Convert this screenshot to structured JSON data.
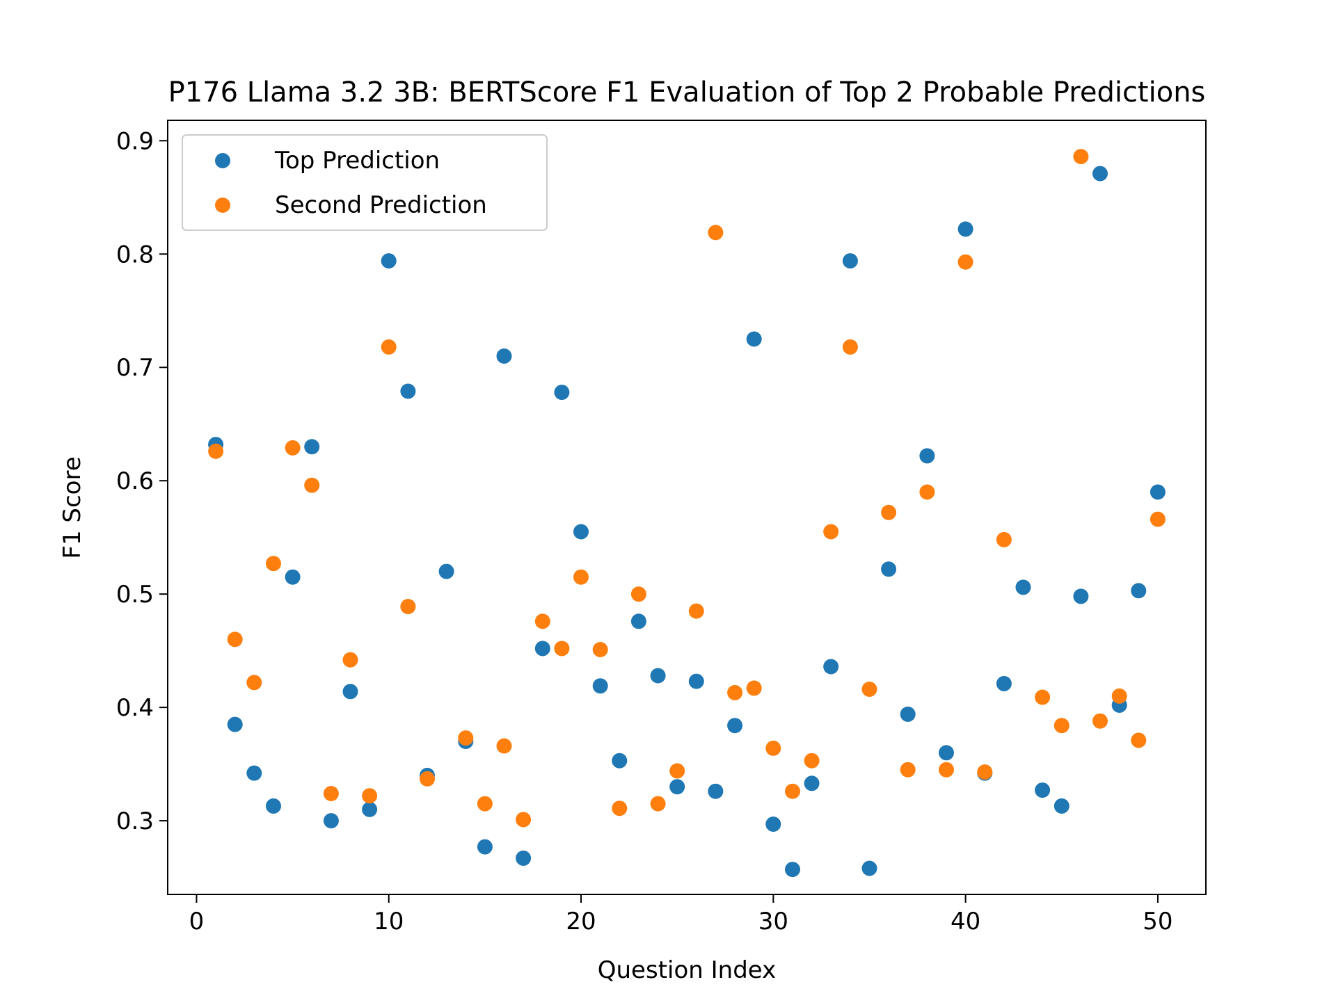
{
  "chart_data": {
    "type": "scatter",
    "title": "P176 Llama 3.2 3B: BERTScore F1 Evaluation of Top 2 Probable Predictions",
    "xlabel": "Question Index",
    "ylabel": "F1 Score",
    "xlim": [
      -1.5,
      52.5
    ],
    "ylim": [
      0.235,
      0.918
    ],
    "xticks": [
      0,
      10,
      20,
      30,
      40,
      50
    ],
    "yticks": [
      0.3,
      0.4,
      0.5,
      0.6,
      0.7,
      0.8,
      0.9
    ],
    "xtick_labels": [
      "0",
      "10",
      "20",
      "30",
      "40",
      "50"
    ],
    "ytick_labels": [
      "0.3",
      "0.4",
      "0.5",
      "0.6",
      "0.7",
      "0.8",
      "0.9"
    ],
    "grid": false,
    "legend_position": "upper-left",
    "x": [
      1,
      2,
      3,
      4,
      5,
      6,
      7,
      8,
      9,
      10,
      11,
      12,
      13,
      14,
      15,
      16,
      17,
      18,
      19,
      20,
      21,
      22,
      23,
      24,
      25,
      26,
      27,
      28,
      29,
      30,
      31,
      32,
      33,
      34,
      35,
      36,
      37,
      38,
      39,
      40,
      41,
      42,
      43,
      44,
      45,
      46,
      47,
      48,
      49,
      50
    ],
    "series": [
      {
        "name": "Top Prediction",
        "color": "#1f77b4",
        "values": [
          0.632,
          0.385,
          0.342,
          0.313,
          0.515,
          0.63,
          0.3,
          0.414,
          0.31,
          0.794,
          0.679,
          0.34,
          0.52,
          0.37,
          0.277,
          0.71,
          0.267,
          0.452,
          0.678,
          0.555,
          0.419,
          0.353,
          0.476,
          0.428,
          0.33,
          0.423,
          0.326,
          0.384,
          0.725,
          0.297,
          0.257,
          0.333,
          0.436,
          0.794,
          0.258,
          0.522,
          0.394,
          0.622,
          0.36,
          0.822,
          0.342,
          0.421,
          0.506,
          0.327,
          0.313,
          0.498,
          0.871,
          0.402,
          0.503,
          0.59
        ]
      },
      {
        "name": "Second Prediction",
        "color": "#ff7f0e",
        "values": [
          0.626,
          0.46,
          0.422,
          0.527,
          0.629,
          0.596,
          0.324,
          0.442,
          0.322,
          0.718,
          0.489,
          0.337,
          null,
          0.373,
          0.315,
          0.366,
          0.301,
          0.476,
          0.452,
          0.515,
          0.451,
          0.311,
          0.5,
          0.315,
          0.344,
          0.485,
          0.819,
          0.413,
          0.417,
          0.364,
          0.326,
          0.353,
          0.555,
          0.718,
          0.416,
          0.572,
          0.345,
          0.59,
          0.345,
          0.793,
          0.343,
          0.548,
          null,
          0.409,
          0.384,
          0.886,
          0.388,
          0.41,
          0.371,
          0.566
        ]
      }
    ]
  }
}
